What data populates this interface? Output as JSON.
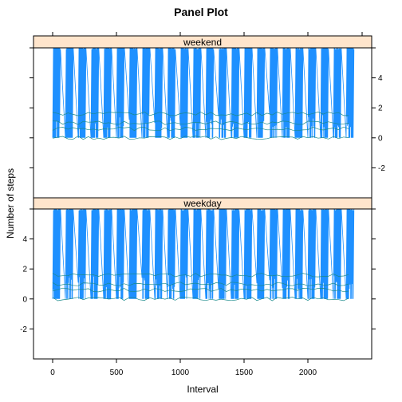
{
  "chart_data": {
    "type": "line",
    "title": "Panel Plot",
    "xlabel": "Interval",
    "ylabel": "Number of steps",
    "xlim": [
      -150,
      2500
    ],
    "ylim": [
      -4,
      6
    ],
    "x_ticks": [
      0,
      500,
      1000,
      1500,
      2000
    ],
    "x_tick_labels": [
      "0",
      "500",
      "1000",
      "1500",
      "2000"
    ],
    "y_ticks": [
      -2,
      0,
      2,
      4
    ],
    "y_tick_labels": [
      "-2",
      "0",
      "2",
      "4"
    ],
    "line_color": "#1E90FF",
    "strip_color": "#FFE5CC",
    "interval_range": [
      0,
      2355
    ],
    "baseline_lines": [
      0,
      0.6,
      1.0,
      1.6
    ],
    "panels": [
      {
        "name": "weekend",
        "y_axis_side": "right",
        "data_range": [
          0,
          6
        ]
      },
      {
        "name": "weekday",
        "y_axis_side": "left",
        "data_range": [
          0,
          6
        ]
      }
    ]
  }
}
